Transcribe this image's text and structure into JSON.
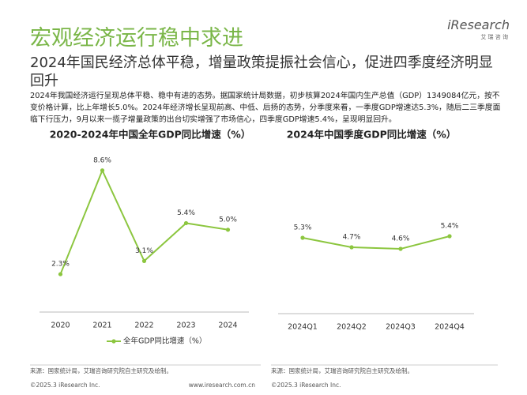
{
  "header": {
    "title": "宏观经济运行稳中求进",
    "logo": "iResearch",
    "logo_sub": "艾 瑞 咨 询",
    "subtitle": "2024年国民经济总体平稳，增量政策提振社会信心，促进四季度经济明显回升",
    "body": "2024年我国经济运行呈现总体平稳、稳中有进的态势。据国家统计局数据，初步核算2024年国内生产总值（GDP）1349084亿元，按不变价格计算，比上年增长5.0%。2024年经济增长呈现前高、中低、后扬的态势，分季度来看，一季度GDP增速达5.3%，随后二三季度面临下行压力，9月以来一揽子增量政策的出台切实增强了市场信心，四季度GDP增速5.4%，呈现明显回升。"
  },
  "chart_data": [
    {
      "type": "line",
      "title": "2020-2024年中国全年GDP同比增速（%）",
      "categories": [
        "2020",
        "2021",
        "2022",
        "2023",
        "2024"
      ],
      "series": [
        {
          "name": "全年GDP同比增速（%）",
          "color": "#8cc63f",
          "values": [
            2.3,
            8.6,
            3.1,
            5.4,
            5.0
          ],
          "value_labels": [
            "2.3%",
            "8.6%",
            "3.1%",
            "5.4%",
            "5.0%"
          ]
        }
      ],
      "ylim": [
        0,
        9.5
      ]
    },
    {
      "type": "line",
      "title": "2024年中国季度GDP同比增速（%）",
      "categories": [
        "2024Q1",
        "2024Q2",
        "2024Q3",
        "2024Q4"
      ],
      "color": "#8cc63f",
      "values": [
        5.3,
        4.7,
        4.6,
        5.4
      ],
      "value_labels": [
        "5.3%",
        "4.7%",
        "4.6%",
        "5.4%"
      ],
      "ylim": [
        0.5,
        10.5
      ]
    }
  ],
  "footer": {
    "sources": [
      "来源：国家统计局，艾瑞咨询研究院自主研究及绘制。",
      "来源：国家统计局，艾瑞咨询研究院自主研究及绘制。"
    ],
    "copyright": [
      "©2025.3 iResearch Inc.",
      "©2025.3 iResearch Inc."
    ],
    "url": "www.iresearch.com.cn"
  }
}
